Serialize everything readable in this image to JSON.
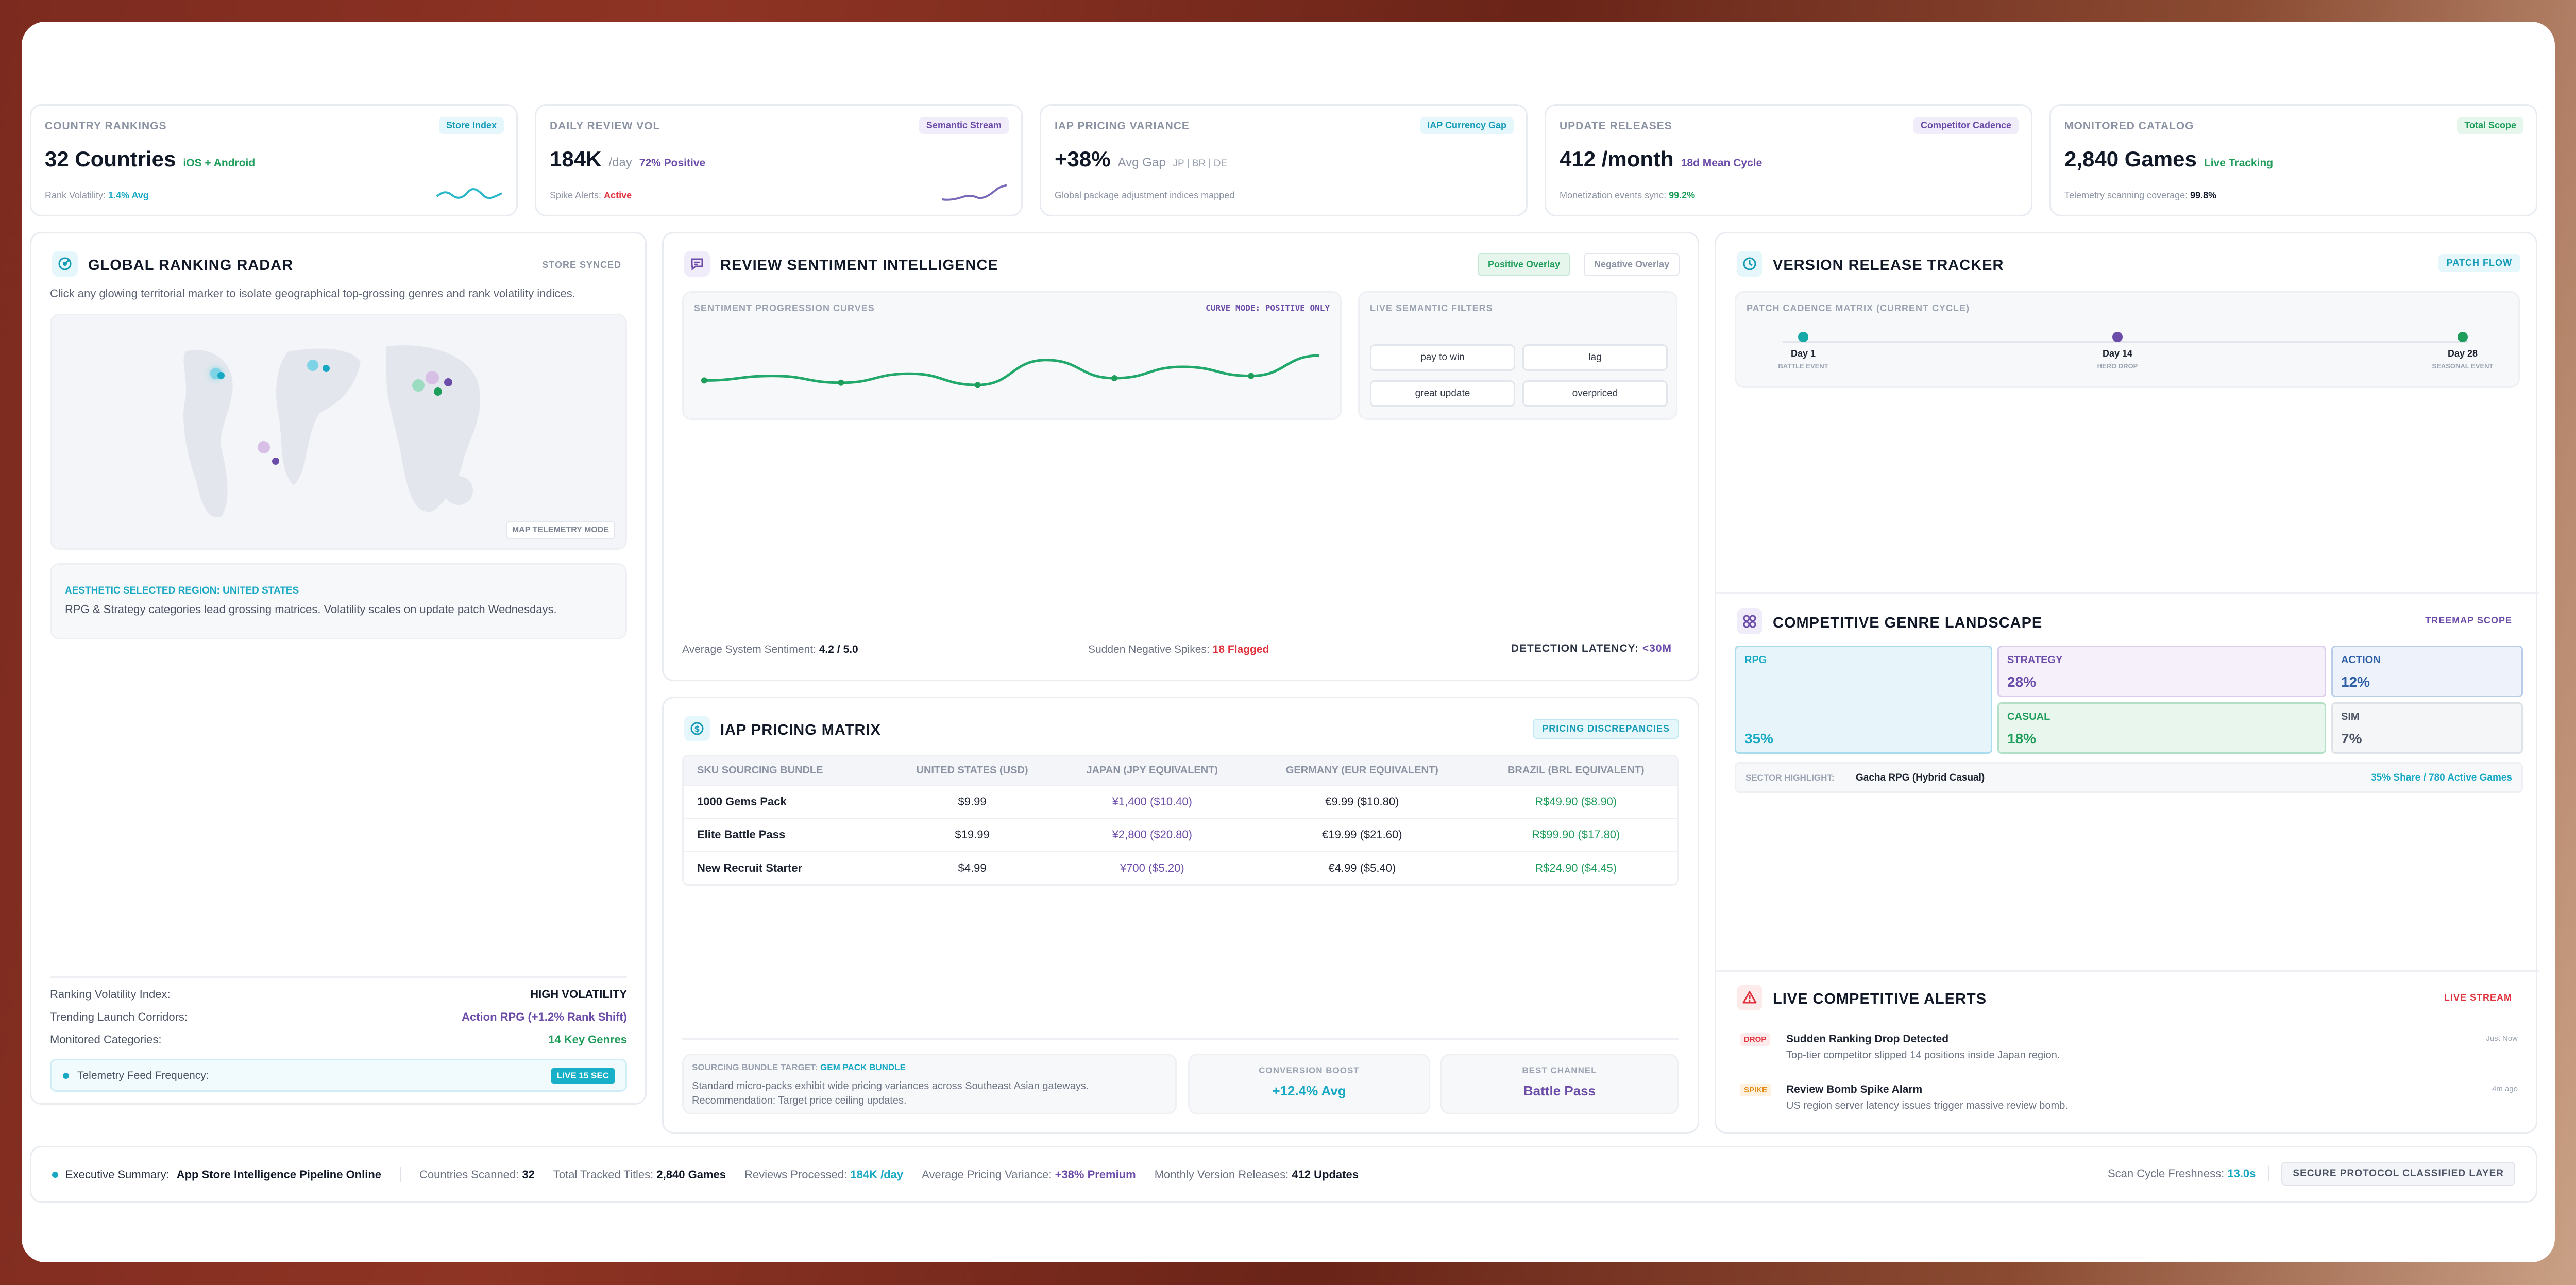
{
  "kpis": [
    {
      "label": "COUNTRY RANKINGS",
      "badge": "Store Index",
      "value": "32 Countries",
      "unit": "",
      "sub": "iOS + Android",
      "foot_label": "Rank Volatility:",
      "foot_value": "1.4% Avg",
      "badge_color": "#17a8c4"
    },
    {
      "label": "DAILY REVIEW VOL",
      "badge": "Semantic Stream",
      "value": "184K",
      "unit": "/day",
      "sub": "72% Positive",
      "foot_label": "Spike Alerts:",
      "foot_value": "Active",
      "badge_color": "#6b4ca8"
    },
    {
      "label": "IAP PRICING VARIANCE",
      "badge": "IAP Currency Gap",
      "value": "+38%",
      "unit": "Avg Gap",
      "sub": "JP | BR | DE",
      "foot_label": "Global package adjustment indices mapped",
      "foot_value": "",
      "badge_color": "#17a8c4"
    },
    {
      "label": "UPDATE RELEASES",
      "badge": "Competitor Cadence",
      "value": "412 /month",
      "unit": "",
      "sub": "18d Mean Cycle",
      "foot_label": "Monetization events sync:",
      "foot_value": "99.2%",
      "badge_color": "#6b4ca8"
    },
    {
      "label": "MONITORED CATALOG",
      "badge": "Total Scope",
      "value": "2,840 Games",
      "unit": "",
      "sub": "Live Tracking",
      "foot_label": "Telemetry scanning coverage:",
      "foot_value": "99.8%",
      "badge_color": "#1f9d5a"
    }
  ],
  "radar": {
    "title": "GLOBAL RANKING RADAR",
    "badge": "STORE SYNCED",
    "desc": "Click any glowing territorial marker to isolate geographical top-grossing genres and rank volatility indices.",
    "map_mode": "MAP TELEMETRY MODE",
    "region_label": "AESTHETIC SELECTED REGION:",
    "region_value": "UNITED STATES",
    "region_desc": "RPG & Strategy categories lead grossing matrices. Volatility scales on update patch Wednesdays.",
    "stats": [
      {
        "label": "Ranking Volatility Index:",
        "value": "HIGH VOLATILITY"
      },
      {
        "label": "Trending Launch Corridors:",
        "value": "Action RPG (+1.2% Rank Shift)"
      },
      {
        "label": "Monitored Categories:",
        "value": "14 Key Genres"
      }
    ],
    "feed_label": "Telemetry Feed Frequency:",
    "feed_value": "LIVE 15 SEC"
  },
  "sentiment": {
    "title": "REVIEW SENTIMENT INTELLIGENCE",
    "btn_positive": "Positive Overlay",
    "btn_negative": "Negative Overlay",
    "curves_label": "SENTIMENT PROGRESSION CURVES",
    "curve_mode": "CURVE MODE: POSITIVE ONLY",
    "filters_label": "LIVE SEMANTIC FILTERS",
    "filters": [
      "pay to win",
      "lag",
      "great update",
      "overpriced"
    ],
    "avg_label": "Average System Sentiment:",
    "avg_value": "4.2 / 5.0",
    "spikes_label": "Sudden Negative Spikes:",
    "spikes_value": "18 Flagged",
    "latency_label": "DETECTION LATENCY:",
    "latency_value": "<30M"
  },
  "chart_data": {
    "type": "line",
    "x": [
      0,
      1,
      2,
      3,
      4,
      5,
      6,
      7,
      8,
      9
    ],
    "series": [
      {
        "values": [
          3.4,
          3.6,
          3.3,
          3.7,
          3.2,
          4.3,
          3.5,
          4.0,
          3.6,
          4.5
        ]
      }
    ],
    "markers": [
      0,
      2,
      4,
      6,
      8
    ]
  },
  "pricing": {
    "title": "IAP PRICING MATRIX",
    "badge": "PRICING DISCREPANCIES",
    "headers": [
      "SKU SOURCING BUNDLE",
      "UNITED STATES (USD)",
      "JAPAN (JPY EQUIVALENT)",
      "GERMANY (EUR EQUIVALENT)",
      "BRAZIL (BRL EQUIVALENT)"
    ],
    "rows": [
      [
        "1000 Gems Pack",
        "$9.99",
        "¥1,400 ($10.40)",
        "€9.99 ($10.80)",
        "R$49.90 ($8.90)"
      ],
      [
        "Elite Battle Pass",
        "$19.99",
        "¥2,800 ($20.80)",
        "€19.99 ($21.60)",
        "R$99.90 ($17.80)"
      ],
      [
        "New Recruit Starter",
        "$4.99",
        "¥700 ($5.20)",
        "€4.99 ($5.40)",
        "R$24.90 ($4.45)"
      ]
    ],
    "target_label": "SOURCING BUNDLE TARGET:",
    "target_value": "GEM PACK BUNDLE",
    "target_desc": "Standard micro-packs exhibit wide pricing variances across Southeast Asian gateways. Recommendation: Target price ceiling updates.",
    "conv_label": "CONVERSION BOOST",
    "conv_value": "+12.4% Avg",
    "channel_label": "BEST CHANNEL",
    "channel_value": "Battle Pass"
  },
  "versions": {
    "title": "VERSION RELEASE TRACKER",
    "badge": "PATCH FLOW",
    "matrix_label": "PATCH CADENCE MATRIX (CURRENT CYCLE)",
    "nodes": [
      {
        "day": "Day 1",
        "event": "BATTLE EVENT",
        "color": "#17a8a8"
      },
      {
        "day": "Day 14",
        "event": "HERO DROP",
        "color": "#6b4ca8"
      },
      {
        "day": "Day 28",
        "event": "SEASONAL EVENT",
        "color": "#1f9d5a"
      }
    ]
  },
  "genres": {
    "title": "COMPETITIVE GENRE LANDSCAPE",
    "badge": "TREEMAP SCOPE",
    "cells": [
      {
        "name": "RPG",
        "share": "35%",
        "value": 35
      },
      {
        "name": "STRATEGY",
        "share": "28%",
        "value": 28
      },
      {
        "name": "ACTION",
        "share": "12%",
        "value": 12
      },
      {
        "name": "CASUAL",
        "share": "18%",
        "value": 18
      },
      {
        "name": "SIM",
        "share": "7%",
        "value": 7
      }
    ],
    "highlight_label": "SECTOR HIGHLIGHT:",
    "highlight_value": "Gacha RPG (Hybrid Casual)",
    "highlight_stat": "35% Share / 780 Active Games"
  },
  "alerts": {
    "title": "LIVE COMPETITIVE ALERTS",
    "badge": "LIVE STREAM",
    "items": [
      {
        "tag": "DROP",
        "title": "Sudden Ranking Drop Detected",
        "desc": "Top-tier competitor slipped 14 positions inside Japan region.",
        "time": "Just Now"
      },
      {
        "tag": "SPIKE",
        "title": "Review Bomb Spike Alarm",
        "desc": "US region server latency issues trigger massive review bomb.",
        "time": "4m ago"
      }
    ]
  },
  "summary": {
    "exec_label": "Executive Summary:",
    "exec_value": "App Store Intelligence Pipeline Online",
    "countries_label": "Countries Scanned:",
    "countries_value": "32",
    "titles_label": "Total Tracked Titles:",
    "titles_value": "2,840 Games",
    "reviews_label": "Reviews Processed:",
    "reviews_value": "184K /day",
    "pricing_label": "Average Pricing Variance:",
    "pricing_value": "+38% Premium",
    "releases_label": "Monthly Version Releases:",
    "releases_value": "412 Updates",
    "freshness_label": "Scan Cycle Freshness:",
    "freshness_value": "13.0s",
    "protocol": "SECURE PROTOCOL CLASSIFIED LAYER"
  }
}
